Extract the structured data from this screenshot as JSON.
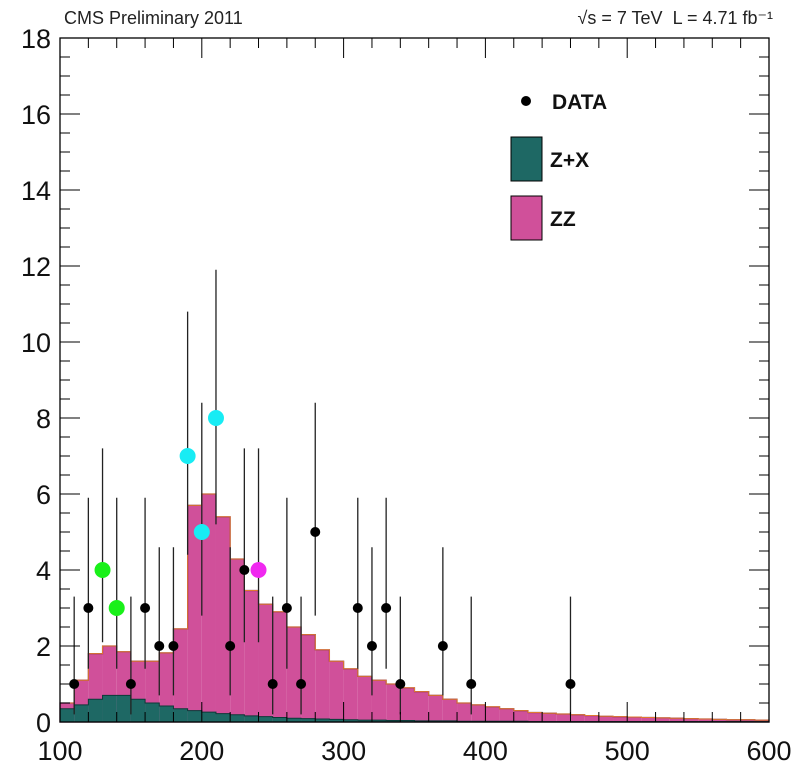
{
  "header": {
    "left": "CMS Preliminary 2011",
    "sqrt_s": "√s = 7 TeV",
    "lumi": "L = 4.71 fb⁻¹"
  },
  "colors": {
    "zz": "#d0509a",
    "zx": "#1e6864",
    "zz_outline": "#6a1a52",
    "top_outline": "#e07a30",
    "data": "#000000",
    "highlight_green": "#19f019",
    "highlight_cyan": "#18ecf4",
    "highlight_magenta": "#f028f0"
  },
  "chart_data": {
    "type": "area",
    "title": "",
    "xlabel": "",
    "ylabel": "",
    "xlim": [
      100,
      600
    ],
    "ylim": [
      0,
      18
    ],
    "x_ticks": [
      100,
      200,
      300,
      400,
      500,
      600
    ],
    "y_ticks": [
      0,
      2,
      4,
      6,
      8,
      10,
      12,
      14,
      16,
      18
    ],
    "grid": false,
    "legend_position": "top-right",
    "legend": [
      {
        "label": "DATA",
        "kind": "marker"
      },
      {
        "label": "Z+X",
        "kind": "fill",
        "color": "#1e6864"
      },
      {
        "label": "ZZ",
        "kind": "fill",
        "color": "#d0509a"
      }
    ],
    "bin_edges": [
      100,
      110,
      120,
      130,
      140,
      150,
      160,
      170,
      180,
      190,
      200,
      210,
      220,
      230,
      240,
      250,
      260,
      270,
      280,
      290,
      300,
      310,
      320,
      330,
      340,
      350,
      360,
      370,
      380,
      390,
      400,
      410,
      420,
      430,
      440,
      450,
      460,
      470,
      480,
      490,
      500,
      510,
      520,
      530,
      540,
      550,
      560,
      570,
      580,
      590,
      600
    ],
    "series": [
      {
        "name": "Z+X",
        "values": [
          0.35,
          0.45,
          0.6,
          0.7,
          0.7,
          0.6,
          0.5,
          0.42,
          0.35,
          0.3,
          0.26,
          0.22,
          0.19,
          0.16,
          0.14,
          0.12,
          0.1,
          0.09,
          0.08,
          0.07,
          0.06,
          0.05,
          0.05,
          0.04,
          0.04,
          0.03,
          0.03,
          0.03,
          0.02,
          0.02,
          0.02,
          0.02,
          0.02,
          0.01,
          0.01,
          0.01,
          0.01,
          0.01,
          0.01,
          0.01,
          0.01,
          0.01,
          0.01,
          0.01,
          0.01,
          0.01,
          0.01,
          0.01,
          0.01,
          0.01
        ]
      },
      {
        "name": "ZZ",
        "values": [
          0.15,
          0.65,
          1.2,
          1.3,
          1.15,
          1.0,
          1.1,
          1.4,
          2.1,
          5.4,
          5.74,
          5.18,
          4.1,
          3.3,
          2.96,
          2.78,
          2.4,
          2.21,
          1.82,
          1.53,
          1.34,
          1.15,
          1.05,
          0.96,
          0.86,
          0.77,
          0.67,
          0.57,
          0.48,
          0.43,
          0.38,
          0.33,
          0.28,
          0.24,
          0.22,
          0.2,
          0.18,
          0.16,
          0.14,
          0.13,
          0.12,
          0.11,
          0.1,
          0.09,
          0.08,
          0.07,
          0.06,
          0.05,
          0.05,
          0.04
        ]
      }
    ],
    "data_points": [
      {
        "x": 110,
        "y": 1,
        "err_low": 0.8,
        "err_high": 2.3
      },
      {
        "x": 120,
        "y": 3,
        "err_low": 1.6,
        "err_high": 2.9
      },
      {
        "x": 130,
        "y": 4,
        "err_low": 1.9,
        "err_high": 3.2,
        "highlight": "green"
      },
      {
        "x": 140,
        "y": 3,
        "err_low": 1.6,
        "err_high": 2.9,
        "highlight": "green"
      },
      {
        "x": 150,
        "y": 1,
        "err_low": 0.8,
        "err_high": 2.3
      },
      {
        "x": 160,
        "y": 3,
        "err_low": 1.6,
        "err_high": 2.9
      },
      {
        "x": 170,
        "y": 2,
        "err_low": 1.3,
        "err_high": 2.6
      },
      {
        "x": 180,
        "y": 2,
        "err_low": 1.3,
        "err_high": 2.6
      },
      {
        "x": 190,
        "y": 7,
        "err_low": 2.6,
        "err_high": 3.8,
        "highlight": "cyan"
      },
      {
        "x": 200,
        "y": 5,
        "err_low": 2.2,
        "err_high": 3.4,
        "highlight": "cyan"
      },
      {
        "x": 210,
        "y": 8,
        "err_low": 2.8,
        "err_high": 3.9,
        "highlight": "cyan"
      },
      {
        "x": 220,
        "y": 2,
        "err_low": 1.3,
        "err_high": 2.6
      },
      {
        "x": 230,
        "y": 4,
        "err_low": 1.9,
        "err_high": 3.2
      },
      {
        "x": 240,
        "y": 4,
        "err_low": 1.9,
        "err_high": 3.2,
        "highlight": "magenta"
      },
      {
        "x": 250,
        "y": 1,
        "err_low": 0.8,
        "err_high": 2.3
      },
      {
        "x": 260,
        "y": 3,
        "err_low": 1.6,
        "err_high": 2.9
      },
      {
        "x": 270,
        "y": 1,
        "err_low": 0.8,
        "err_high": 2.3
      },
      {
        "x": 280,
        "y": 5,
        "err_low": 2.2,
        "err_high": 3.4
      },
      {
        "x": 310,
        "y": 3,
        "err_low": 1.6,
        "err_high": 2.9
      },
      {
        "x": 320,
        "y": 2,
        "err_low": 1.3,
        "err_high": 2.6
      },
      {
        "x": 330,
        "y": 3,
        "err_low": 1.6,
        "err_high": 2.9
      },
      {
        "x": 340,
        "y": 1,
        "err_low": 0.8,
        "err_high": 2.3
      },
      {
        "x": 370,
        "y": 2,
        "err_low": 1.3,
        "err_high": 2.6
      },
      {
        "x": 390,
        "y": 1,
        "err_low": 0.8,
        "err_high": 2.3
      },
      {
        "x": 460,
        "y": 1,
        "err_low": 0.8,
        "err_high": 2.3
      }
    ]
  }
}
